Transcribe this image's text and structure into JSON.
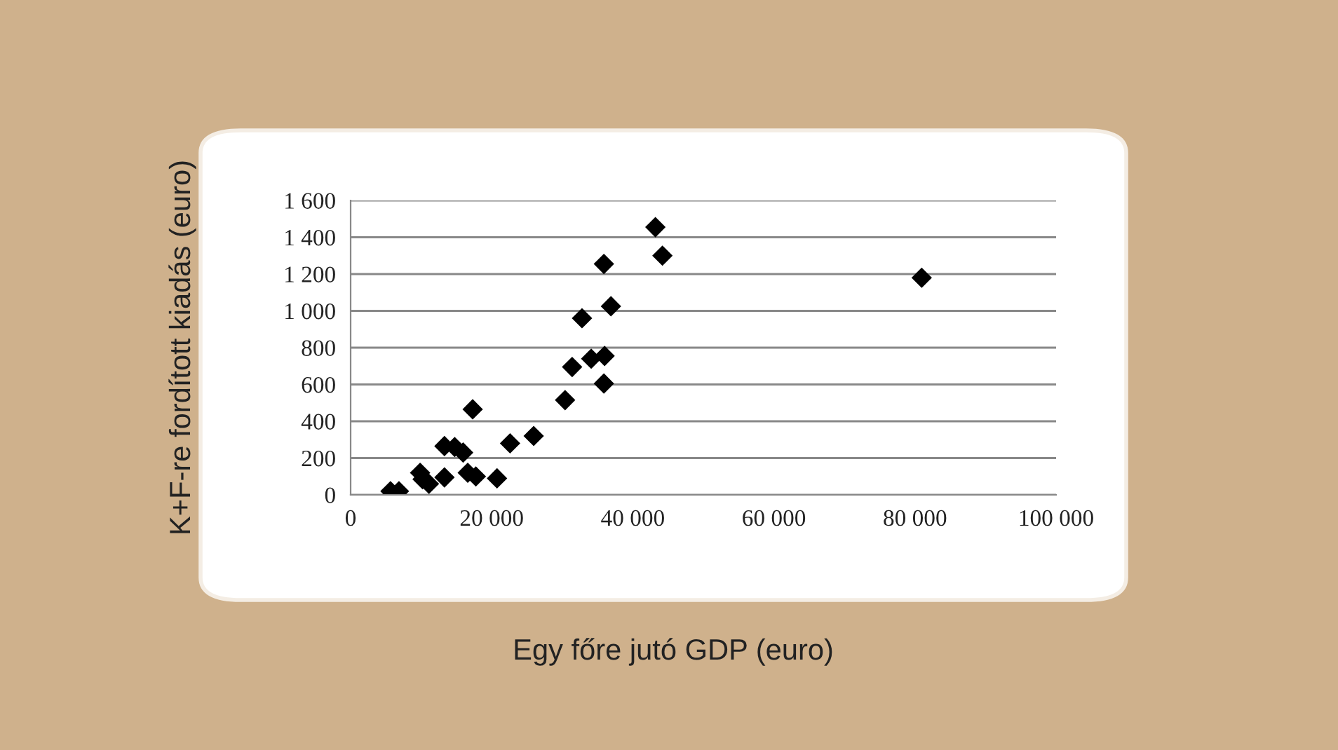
{
  "chart_data": {
    "type": "scatter",
    "xlabel": "Egy főre jutó GDP (euro)",
    "ylabel": "K+F-re fordított kiadás (euro)",
    "x": [
      5650,
      6850,
      9850,
      10200,
      11100,
      13300,
      13300,
      14750,
      15950,
      16600,
      17750,
      17300,
      20750,
      22600,
      25950,
      30400,
      31400,
      32800,
      34100,
      36000,
      35900,
      35900,
      36900,
      43200,
      44200,
      80950
    ],
    "values": [
      20,
      20,
      120,
      85,
      60,
      95,
      265,
      260,
      230,
      120,
      100,
      465,
      90,
      280,
      320,
      515,
      695,
      960,
      740,
      755,
      605,
      1255,
      1025,
      1455,
      1300,
      1180
    ],
    "color": "#000000",
    "marker": "diamond",
    "grid": "y",
    "xlim": [
      0,
      100000
    ],
    "xticks": [
      0,
      {
        "value": 20000,
        "label": "20 000"
      },
      {
        "value": 40000,
        "label": "40 000"
      },
      {
        "value": 60000,
        "label": "60 000"
      },
      {
        "value": 80000,
        "label": "80 000"
      },
      {
        "value": 100000,
        "label": "100 000"
      }
    ],
    "ylim": [
      0,
      1600
    ],
    "yticks": [
      0,
      200,
      400,
      600,
      800,
      {
        "value": 1000,
        "label": "1 000"
      },
      {
        "value": 1200,
        "label": "1 200"
      },
      {
        "value": 1400,
        "label": "1 400"
      },
      {
        "value": 1600,
        "label": "1 600"
      }
    ]
  }
}
